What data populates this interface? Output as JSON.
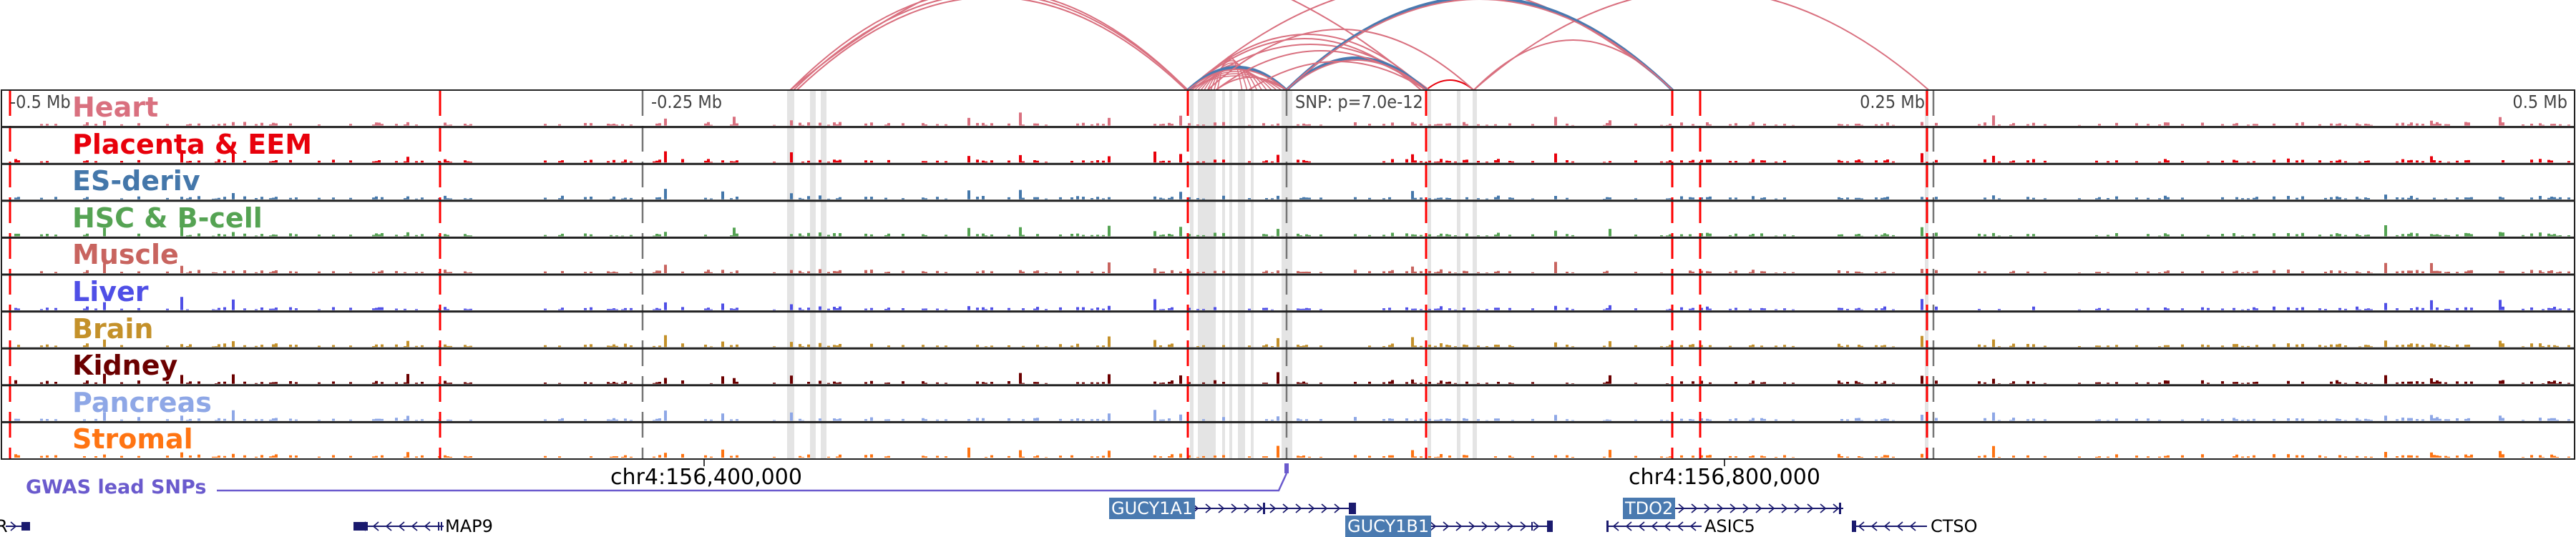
{
  "tracks": [
    {
      "label": "Heart",
      "color": "#d9707f"
    },
    {
      "label": "Placenta & EEM",
      "color": "#e8000b"
    },
    {
      "label": "ES-deriv",
      "color": "#4477aa"
    },
    {
      "label": "HSC & B-cell",
      "color": "#55a353"
    },
    {
      "label": "Muscle",
      "color": "#c8645f"
    },
    {
      "label": "Liver",
      "color": "#4f4fe6"
    },
    {
      "label": "Brain",
      "color": "#c4912a"
    },
    {
      "label": "Kidney",
      "color": "#6b0000"
    },
    {
      "label": "Pancreas",
      "color": "#8ea7e6"
    },
    {
      "label": "Stromal",
      "color": "#ff7412"
    }
  ],
  "axis": {
    "minus_half": "-0.5 Mb",
    "minus_quarter": "-0.25 Mb",
    "snp": "SNP: p=7.0e-12",
    "plus_quarter": "0.25 Mb",
    "plus_half": "0.5 Mb",
    "coord_1": "chr4:156,400,000",
    "coord_2": "chr4:156,800,000"
  },
  "gwas": {
    "label": "GWAS lead SNPs",
    "color": "#6a5acd"
  },
  "genes": {
    "partial_left": "R",
    "map9": "MAP9",
    "gucy1a1": "GUCY1A1",
    "gucy1b1": "GUCY1B1",
    "tdo2": "TDO2",
    "asic5": "ASIC5",
    "ctso": "CTSO"
  },
  "colors": {
    "arc_pink": "#d9707f",
    "arc_blue": "#4a7ab0",
    "gene": "#1a1a6e",
    "dash_red": "#ff0000"
  }
}
